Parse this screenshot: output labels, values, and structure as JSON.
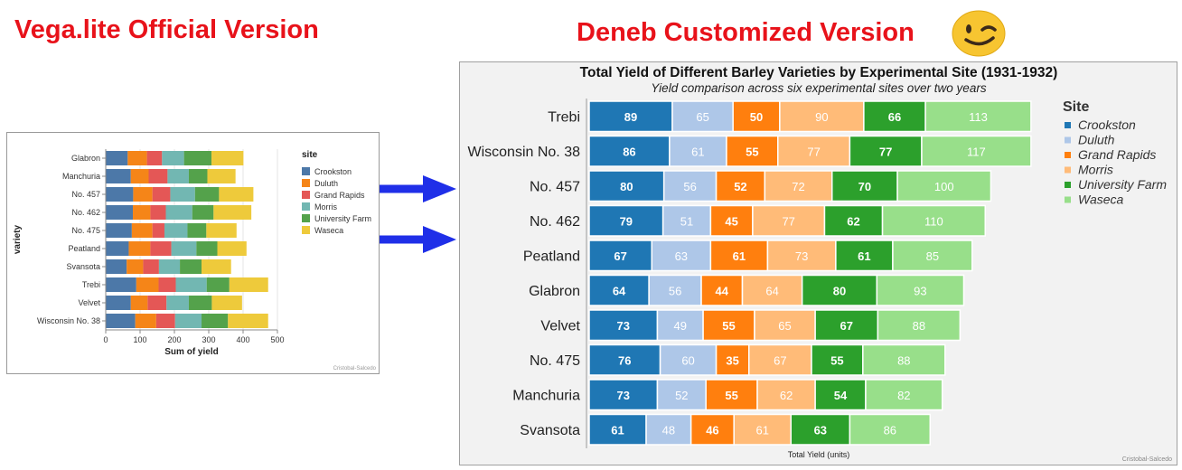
{
  "headings": {
    "left": "Vega.lite Official Version",
    "right": "Deneb Customized Version"
  },
  "colors": {
    "heading": "#e8121a",
    "arrow": "#1f2fe8",
    "emoji": "#f7c531"
  },
  "icons": {
    "emoji": "winking-face-icon",
    "arrow": "arrow-right-icon"
  },
  "chart_data": [
    {
      "type": "bar",
      "stacked": true,
      "orientation": "horizontal",
      "title": "",
      "xlabel": "Sum of yield",
      "ylabel": "variety",
      "xlim": [
        0,
        500
      ],
      "xticks": [
        0,
        100,
        200,
        300,
        400,
        500
      ],
      "grid": true,
      "legend_title": "site",
      "legend_position": "right",
      "credit": "Cristobal-Salcedo",
      "colors": [
        "#4c78a8",
        "#f58518",
        "#e45756",
        "#72b7b2",
        "#54a24b",
        "#eeca3b"
      ],
      "series_names": [
        "Crookston",
        "Duluth",
        "Grand Rapids",
        "Morris",
        "University Farm",
        "Waseca"
      ],
      "categories": [
        "Glabron",
        "Manchuria",
        "No. 457",
        "No. 462",
        "No. 475",
        "Peatland",
        "Svansota",
        "Trebi",
        "Velvet",
        "Wisconsin No. 38"
      ],
      "series": [
        {
          "name": "Crookston",
          "values": [
            64,
            73,
            80,
            79,
            76,
            67,
            61,
            89,
            73,
            86
          ]
        },
        {
          "name": "Duluth",
          "values": [
            56,
            52,
            56,
            51,
            60,
            63,
            48,
            65,
            49,
            61
          ]
        },
        {
          "name": "Grand Rapids",
          "values": [
            44,
            55,
            52,
            45,
            35,
            61,
            46,
            50,
            55,
            55
          ]
        },
        {
          "name": "Morris",
          "values": [
            64,
            62,
            72,
            77,
            67,
            73,
            61,
            90,
            65,
            77
          ]
        },
        {
          "name": "University Farm",
          "values": [
            80,
            54,
            70,
            62,
            55,
            61,
            63,
            66,
            67,
            77
          ]
        },
        {
          "name": "Waseca",
          "values": [
            93,
            82,
            100,
            110,
            88,
            85,
            86,
            113,
            88,
            117
          ]
        }
      ]
    },
    {
      "type": "bar",
      "stacked": true,
      "orientation": "horizontal",
      "title": "Total Yield of Different Barley Varieties by Experimental Site (1931-1932)",
      "subtitle": "Yield comparison across six experimental sites over two years",
      "xlabel": "Total Yield (units)",
      "ylabel": "",
      "legend_title": "Site",
      "legend_position": "right",
      "credit": "Cristobal-Salcedo",
      "colors": [
        "#1f77b4",
        "#aec7e8",
        "#ff7f0e",
        "#ffbb78",
        "#2ca02c",
        "#98df8a"
      ],
      "series_names": [
        "Crookston",
        "Duluth",
        "Grand Rapids",
        "Morris",
        "University Farm",
        "Waseca"
      ],
      "categories": [
        "Trebi",
        "Wisconsin No. 38",
        "No. 457",
        "No. 462",
        "Peatland",
        "Glabron",
        "Velvet",
        "No. 475",
        "Manchuria",
        "Svansota"
      ],
      "series": [
        {
          "name": "Crookston",
          "values": [
            89,
            86,
            80,
            79,
            67,
            64,
            73,
            76,
            73,
            61
          ]
        },
        {
          "name": "Duluth",
          "values": [
            65,
            61,
            56,
            51,
            63,
            56,
            49,
            60,
            52,
            48
          ]
        },
        {
          "name": "Grand Rapids",
          "values": [
            50,
            55,
            52,
            45,
            61,
            44,
            55,
            35,
            55,
            46
          ]
        },
        {
          "name": "Morris",
          "values": [
            90,
            77,
            72,
            77,
            73,
            64,
            65,
            67,
            62,
            61
          ]
        },
        {
          "name": "University Farm",
          "values": [
            66,
            77,
            70,
            62,
            61,
            80,
            67,
            55,
            54,
            63
          ]
        },
        {
          "name": "Waseca",
          "values": [
            113,
            117,
            100,
            110,
            85,
            93,
            88,
            88,
            82,
            86
          ]
        }
      ]
    }
  ]
}
